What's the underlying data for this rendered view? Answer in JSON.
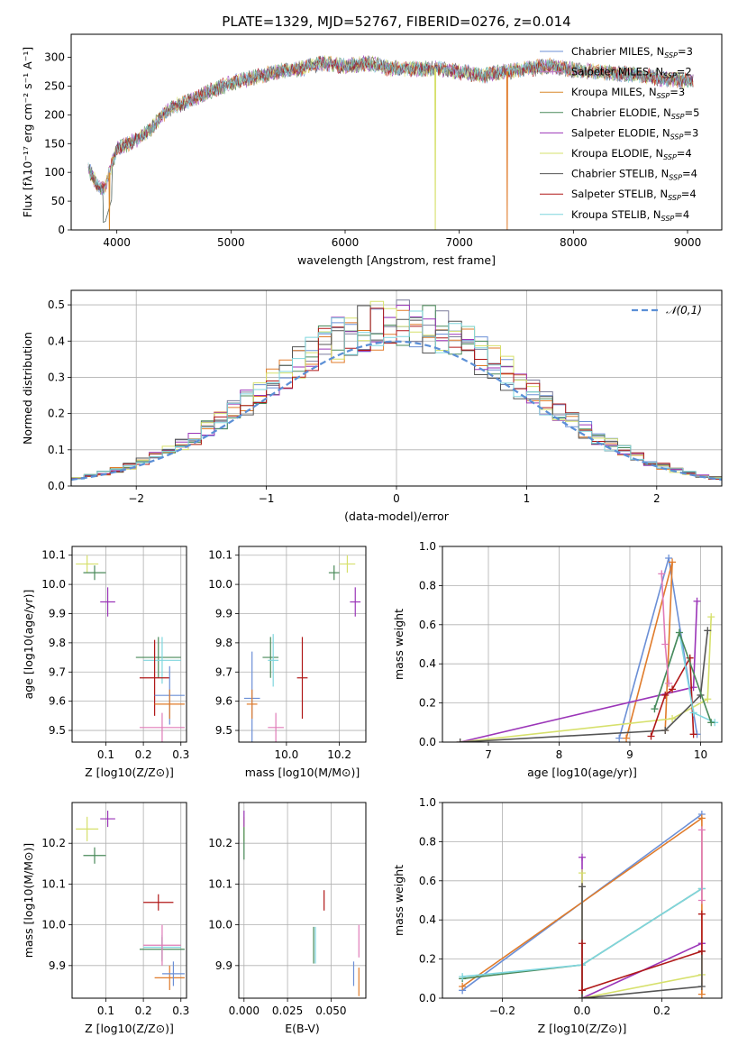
{
  "figure_title": "PLATE=1329, MJD=52767, FIBERID=0276, z=0.014",
  "model_colors": [
    "#6b8fd6",
    "#7c7c9c",
    "#e07b2a",
    "#4a8a5a",
    "#9b35b8",
    "#d6e06b",
    "#555555",
    "#b01818",
    "#7fd6de"
  ],
  "chart_data": [
    {
      "id": "spectrum",
      "type": "line",
      "xlabel": "wavelength [Angstrom, rest frame]",
      "ylabel": "Flux [fλ10⁻¹⁷ erg cm⁻² s⁻¹ A⁻¹]",
      "xlim": [
        3600,
        9300
      ],
      "ylim": [
        0,
        340
      ],
      "xticks": [
        4000,
        5000,
        6000,
        7000,
        8000,
        9000
      ],
      "yticks": [
        0,
        50,
        100,
        150,
        200,
        250,
        300
      ],
      "legend_position": "upper right",
      "legend": [
        {
          "name": "Chabrier MILES, N_SSP=3",
          "color": "#6b8fd6"
        },
        {
          "name": "Salpeter MILES, N_SSP=2",
          "color": "#c07ab8"
        },
        {
          "name": "Kroupa MILES, N_SSP=3",
          "color": "#d9892b"
        },
        {
          "name": "Chabrier ELODIE, N_SSP=5",
          "color": "#4a8a5a"
        },
        {
          "name": "Salpeter ELODIE, N_SSP=3",
          "color": "#9b35b8"
        },
        {
          "name": "Kroupa ELODIE, N_SSP=4",
          "color": "#d6e06b"
        },
        {
          "name": "Chabrier STELIB, N_SSP=4",
          "color": "#555555"
        },
        {
          "name": "Salpeter STELIB, N_SSP=4",
          "color": "#b01818"
        },
        {
          "name": "Kroupa STELIB, N_SSP=4",
          "color": "#7fd6de"
        }
      ],
      "continuum": {
        "x": [
          3750,
          3800,
          3850,
          3900,
          3950,
          4000,
          4100,
          4200,
          4300,
          4400,
          4500,
          4600,
          4800,
          5000,
          5200,
          5400,
          5600,
          5800,
          6000,
          6200,
          6400,
          6600,
          6800,
          7000,
          7200,
          7400,
          7600,
          7800,
          8000,
          8200,
          8400,
          8600,
          8800,
          9000,
          9050
        ],
        "y": [
          105,
          90,
          70,
          75,
          110,
          140,
          150,
          160,
          175,
          200,
          215,
          220,
          240,
          255,
          265,
          275,
          280,
          290,
          285,
          290,
          280,
          280,
          280,
          275,
          268,
          275,
          280,
          285,
          278,
          275,
          272,
          268,
          262,
          260,
          258
        ]
      },
      "drops": [
        {
          "x": 3935,
          "y": 0
        },
        {
          "x": 6790,
          "y": 0
        },
        {
          "x": 7420,
          "y": 0
        }
      ]
    },
    {
      "id": "residuals",
      "type": "histogram",
      "xlabel": "(data-model)/error",
      "ylabel": "Normed distribution",
      "xlim": [
        -2.5,
        2.5
      ],
      "ylim": [
        0,
        0.54
      ],
      "xticks": [
        -2,
        -1,
        0,
        1,
        2
      ],
      "yticks": [
        0.0,
        0.1,
        0.2,
        0.3,
        0.4,
        0.5
      ],
      "grid": true,
      "legend_position": "upper right",
      "reference_label": "𝒩(0,1)",
      "reference_color": "#5b8fd6",
      "bin_width": 0.1
    },
    {
      "id": "age_vs_Z",
      "type": "errorbar",
      "xlabel": "Z [log10(Z/Z⊙)]",
      "ylabel": "age  [log10(age/yr)]",
      "xlim": [
        0.01,
        0.315
      ],
      "ylim": [
        9.46,
        10.13
      ],
      "xticks": [
        0.1,
        0.2,
        0.3
      ],
      "yticks": [
        9.5,
        9.6,
        9.7,
        9.8,
        9.9,
        10.0,
        10.1
      ],
      "grid": true,
      "points": [
        {
          "x": 0.05,
          "y": 10.07,
          "xerr": 0.03,
          "yerr": 0.03,
          "color": "#d6e06b"
        },
        {
          "x": 0.07,
          "y": 10.04,
          "xerr": 0.03,
          "yerr": 0.025,
          "color": "#4a8a5a"
        },
        {
          "x": 0.105,
          "y": 9.94,
          "xerr": 0.02,
          "yerr": 0.05,
          "color": "#9b35b8"
        },
        {
          "x": 0.24,
          "y": 9.75,
          "xerr": 0.06,
          "yerr": 0.07,
          "color": "#4a8a5a"
        },
        {
          "x": 0.25,
          "y": 9.74,
          "xerr": 0.05,
          "yerr": 0.08,
          "color": "#7fd6de"
        },
        {
          "x": 0.23,
          "y": 9.68,
          "xerr": 0.04,
          "yerr": 0.13,
          "color": "#b01818"
        },
        {
          "x": 0.27,
          "y": 9.62,
          "xerr": 0.04,
          "yerr": 0.1,
          "color": "#6b8fd6"
        },
        {
          "x": 0.27,
          "y": 9.59,
          "xerr": 0.04,
          "yerr": 0.05,
          "color": "#e07b2a"
        },
        {
          "x": 0.25,
          "y": 9.51,
          "xerr": 0.06,
          "yerr": 0.05,
          "color": "#e07bb8"
        }
      ]
    },
    {
      "id": "age_vs_mass",
      "type": "errorbar",
      "xlabel": "mass [log10(M/M⊙)]",
      "ylabel": "",
      "xlim": [
        9.82,
        10.3
      ],
      "ylim": [
        9.46,
        10.13
      ],
      "xticks": [
        10.0,
        10.2
      ],
      "yticks": [
        9.5,
        9.6,
        9.7,
        9.8,
        9.9,
        10.0,
        10.1
      ],
      "grid": true,
      "points": [
        {
          "x": 10.23,
          "y": 10.07,
          "xerr": 0.03,
          "yerr": 0.03,
          "color": "#d6e06b"
        },
        {
          "x": 10.18,
          "y": 10.04,
          "xerr": 0.02,
          "yerr": 0.025,
          "color": "#4a8a5a"
        },
        {
          "x": 10.26,
          "y": 9.94,
          "xerr": 0.02,
          "yerr": 0.05,
          "color": "#9b35b8"
        },
        {
          "x": 9.94,
          "y": 9.75,
          "xerr": 0.03,
          "yerr": 0.07,
          "color": "#4a8a5a"
        },
        {
          "x": 9.95,
          "y": 9.74,
          "xerr": 0.02,
          "yerr": 0.09,
          "color": "#7fd6de"
        },
        {
          "x": 10.06,
          "y": 9.68,
          "xerr": 0.02,
          "yerr": 0.14,
          "color": "#b01818"
        },
        {
          "x": 9.87,
          "y": 9.61,
          "xerr": 0.03,
          "yerr": 0.16,
          "color": "#6b8fd6"
        },
        {
          "x": 9.87,
          "y": 9.59,
          "xerr": 0.02,
          "yerr": 0.05,
          "color": "#e07b2a"
        },
        {
          "x": 9.96,
          "y": 9.51,
          "xerr": 0.03,
          "yerr": 0.05,
          "color": "#e07bb8"
        }
      ]
    },
    {
      "id": "mass_weight_vs_age",
      "type": "line",
      "xlabel": "age  [log10(age/yr)]",
      "ylabel": "mass weight",
      "xlim": [
        6.35,
        10.3
      ],
      "ylim": [
        0,
        1.0
      ],
      "xticks": [
        7,
        8,
        9,
        10
      ],
      "yticks": [
        0.0,
        0.2,
        0.4,
        0.6,
        0.8,
        1.0
      ],
      "grid": true,
      "series": [
        {
          "color": "#6b8fd6",
          "x": [
            8.85,
            9.55,
            9.95
          ],
          "y": [
            0.02,
            0.94,
            0.04
          ]
        },
        {
          "color": "#e07b2a",
          "x": [
            8.95,
            9.6,
            9.5
          ],
          "y": [
            0.02,
            0.92,
            0.06
          ]
        },
        {
          "color": "#9b35b8",
          "x": [
            6.6,
            9.9,
            9.95
          ],
          "y": [
            0.0,
            0.28,
            0.72
          ]
        },
        {
          "color": "#d6e06b",
          "x": [
            6.6,
            9.6,
            10.1,
            10.15
          ],
          "y": [
            0.0,
            0.12,
            0.22,
            0.64
          ]
        },
        {
          "color": "#555555",
          "x": [
            6.6,
            9.5,
            10.0,
            10.1
          ],
          "y": [
            0.0,
            0.06,
            0.24,
            0.57
          ]
        },
        {
          "color": "#b01818",
          "x": [
            9.3,
            9.5,
            9.6,
            9.85,
            9.9
          ],
          "y": [
            0.03,
            0.24,
            0.27,
            0.43,
            0.04
          ]
        },
        {
          "color": "#7fd6de",
          "x": [
            9.35,
            9.7,
            9.9,
            10.2
          ],
          "y": [
            0.17,
            0.56,
            0.15,
            0.1
          ]
        },
        {
          "color": "#4a8a5a",
          "x": [
            9.35,
            9.7,
            10.15
          ],
          "y": [
            0.17,
            0.56,
            0.1
          ]
        },
        {
          "color": "#e07bb8",
          "x": [
            9.45,
            9.5,
            9.55
          ],
          "y": [
            0.86,
            0.5,
            0.3
          ]
        }
      ]
    },
    {
      "id": "mass_vs_Z",
      "type": "errorbar",
      "xlabel": "Z [log10(Z/Z⊙)]",
      "ylabel": "mass [log10(M/M⊙)]",
      "xlim": [
        0.01,
        0.315
      ],
      "ylim": [
        9.82,
        10.3
      ],
      "xticks": [
        0.1,
        0.2,
        0.3
      ],
      "yticks": [
        9.9,
        10.0,
        10.1,
        10.2
      ],
      "grid": true,
      "points": [
        {
          "x": 0.05,
          "y": 10.235,
          "xerr": 0.03,
          "yerr": 0.03,
          "color": "#d6e06b"
        },
        {
          "x": 0.07,
          "y": 10.17,
          "xerr": 0.03,
          "yerr": 0.02,
          "color": "#4a8a5a"
        },
        {
          "x": 0.105,
          "y": 10.26,
          "xerr": 0.02,
          "yerr": 0.02,
          "color": "#9b35b8"
        },
        {
          "x": 0.24,
          "y": 10.055,
          "xerr": 0.04,
          "yerr": 0.02,
          "color": "#b01818"
        },
        {
          "x": 0.25,
          "y": 9.94,
          "xerr": 0.06,
          "yerr": 0.03,
          "color": "#4a8a5a"
        },
        {
          "x": 0.25,
          "y": 9.945,
          "xerr": 0.05,
          "yerr": 0.03,
          "color": "#7fd6de"
        },
        {
          "x": 0.27,
          "y": 9.87,
          "xerr": 0.04,
          "yerr": 0.03,
          "color": "#e07b2a"
        },
        {
          "x": 0.28,
          "y": 9.88,
          "xerr": 0.03,
          "yerr": 0.03,
          "color": "#6b8fd6"
        },
        {
          "x": 0.25,
          "y": 9.95,
          "xerr": 0.05,
          "yerr": 0.05,
          "color": "#e07bb8"
        }
      ]
    },
    {
      "id": "mass_vs_ebv",
      "type": "errorbar",
      "xlabel": "E(B-V)",
      "ylabel": "",
      "xlim": [
        -0.003,
        0.07
      ],
      "ylim": [
        9.82,
        10.3
      ],
      "xticks": [
        0.0,
        0.025,
        0.05
      ],
      "xticklabels": [
        "0.000",
        "0.025",
        "0.050"
      ],
      "yticks": [
        9.9,
        10.0,
        10.1,
        10.2
      ],
      "grid": true,
      "points": [
        {
          "x": 0.0,
          "y": 10.235,
          "xerr": 0.0,
          "yerr": 0.03,
          "color": "#d6e06b"
        },
        {
          "x": 0.0,
          "y": 10.2,
          "xerr": 0.0,
          "yerr": 0.04,
          "color": "#4a8a5a"
        },
        {
          "x": 0.0,
          "y": 10.26,
          "xerr": 0.0,
          "yerr": 0.02,
          "color": "#9b35b8"
        },
        {
          "x": 0.046,
          "y": 10.06,
          "xerr": 0.0,
          "yerr": 0.025,
          "color": "#b01818"
        },
        {
          "x": 0.04,
          "y": 9.95,
          "xerr": 0.0,
          "yerr": 0.045,
          "color": "#4a8a5a"
        },
        {
          "x": 0.041,
          "y": 9.95,
          "xerr": 0.0,
          "yerr": 0.045,
          "color": "#7fd6de"
        },
        {
          "x": 0.066,
          "y": 9.86,
          "xerr": 0.0,
          "yerr": 0.035,
          "color": "#e07b2a"
        },
        {
          "x": 0.063,
          "y": 9.88,
          "xerr": 0.0,
          "yerr": 0.03,
          "color": "#6b8fd6"
        },
        {
          "x": 0.066,
          "y": 9.96,
          "xerr": 0.0,
          "yerr": 0.04,
          "color": "#e07bb8"
        }
      ]
    },
    {
      "id": "mass_weight_vs_Z",
      "type": "line",
      "xlabel": "Z [log10(Z/Z⊙)]",
      "ylabel": "mass weight",
      "xlim": [
        -0.35,
        0.35
      ],
      "ylim": [
        0,
        1.0
      ],
      "xticks": [
        -0.2,
        0.0,
        0.2
      ],
      "yticks": [
        0.0,
        0.2,
        0.4,
        0.6,
        0.8,
        1.0
      ],
      "grid": true,
      "series": [
        {
          "color": "#6b8fd6",
          "x": [
            -0.3,
            0.3
          ],
          "y": [
            0.04,
            0.94
          ]
        },
        {
          "color": "#e07b2a",
          "x": [
            -0.3,
            0.3,
            0.3
          ],
          "y": [
            0.06,
            0.92,
            0.02
          ]
        },
        {
          "color": "#4a8a5a",
          "x": [
            -0.3,
            0.0,
            0.3
          ],
          "y": [
            0.1,
            0.17,
            0.56
          ]
        },
        {
          "color": "#7fd6de",
          "x": [
            -0.3,
            0.0,
            0.3
          ],
          "y": [
            0.11,
            0.17,
            0.56
          ]
        },
        {
          "color": "#9b35b8",
          "x": [
            0.0,
            0.0,
            0.3,
            0.3
          ],
          "y": [
            0.72,
            0.0,
            0.28,
            0.28
          ]
        },
        {
          "color": "#d6e06b",
          "x": [
            0.0,
            0.0,
            0.3
          ],
          "y": [
            0.64,
            0.0,
            0.12
          ]
        },
        {
          "color": "#555555",
          "x": [
            0.0,
            0.0,
            0.3,
            0.3
          ],
          "y": [
            0.57,
            0.0,
            0.06,
            0.24
          ]
        },
        {
          "color": "#b01818",
          "x": [
            0.0,
            0.0,
            0.3,
            0.3
          ],
          "y": [
            0.28,
            0.04,
            0.24,
            0.43
          ]
        },
        {
          "color": "#e07bb8",
          "x": [
            0.3,
            0.3
          ],
          "y": [
            0.86,
            0.5
          ]
        }
      ]
    }
  ]
}
